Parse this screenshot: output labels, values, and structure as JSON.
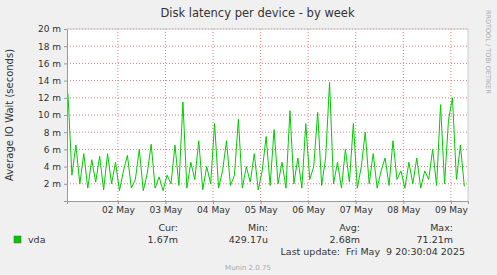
{
  "chart_data": {
    "type": "line",
    "title": "Disk latency per device - by week",
    "y_label": "Average IO Wait (seconds)",
    "x": [
      1.45,
      1.533,
      1.617,
      1.7,
      1.783,
      1.867,
      1.95,
      2.033,
      2.117,
      2.2,
      2.283,
      2.367,
      2.45,
      2.533,
      2.617,
      2.7,
      2.783,
      2.867,
      2.95,
      3.033,
      3.117,
      3.2,
      3.283,
      3.367,
      3.45,
      3.533,
      3.617,
      3.7,
      3.783,
      3.867,
      3.95,
      4.033,
      4.117,
      4.2,
      4.283,
      4.367,
      4.45,
      4.533,
      4.617,
      4.7,
      4.783,
      4.867,
      4.95,
      5.033,
      5.117,
      5.2,
      5.283,
      5.367,
      5.45,
      5.533,
      5.617,
      5.7,
      5.783,
      5.867,
      5.95,
      6.033,
      6.117,
      6.2,
      6.283,
      6.367,
      6.45,
      6.533,
      6.617,
      6.7,
      6.783,
      6.867,
      6.95,
      7.033,
      7.117,
      7.2,
      7.283,
      7.367,
      7.45,
      7.533,
      7.617,
      7.7,
      7.783,
      7.867,
      7.95,
      8.033,
      8.117,
      8.2,
      8.283,
      8.367,
      8.45,
      8.533,
      8.617,
      8.7,
      8.783,
      8.867,
      8.95,
      9.033,
      9.117,
      9.2,
      9.283,
      9.367,
      9.45,
      9.533,
      9.617,
      9.7,
      9.783
    ],
    "series": [
      {
        "name": "vda",
        "color": "#00cc00",
        "values": [
          0.0125,
          0.003,
          0.0065,
          0.002,
          0.0055,
          0.0015,
          0.0048,
          0.0022,
          0.0052,
          0.0013,
          0.0055,
          0.002,
          0.0045,
          0.0012,
          0.0035,
          0.0053,
          0.0015,
          0.0025,
          0.006,
          0.0012,
          0.0032,
          0.0066,
          0.0015,
          0.0028,
          0.0012,
          0.003,
          0.002,
          0.0065,
          0.0018,
          0.0115,
          0.0015,
          0.0045,
          0.0025,
          0.007,
          0.0013,
          0.004,
          0.002,
          0.009,
          0.0015,
          0.0035,
          0.007,
          0.0018,
          0.003,
          0.0095,
          0.0015,
          0.004,
          0.0022,
          0.0055,
          0.0013,
          0.0035,
          0.0075,
          0.0018,
          0.0083,
          0.002,
          0.0045,
          0.0015,
          0.0105,
          0.002,
          0.005,
          0.0015,
          0.009,
          0.0025,
          0.004,
          0.0103,
          0.0018,
          0.005,
          0.0138,
          0.002,
          0.0045,
          0.0015,
          0.006,
          0.0022,
          0.009,
          0.0015,
          0.004,
          0.008,
          0.002,
          0.0055,
          0.0015,
          0.0035,
          0.005,
          0.0018,
          0.007,
          0.0025,
          0.0035,
          0.0015,
          0.0045,
          0.002,
          0.005,
          0.0015,
          0.0035,
          0.0025,
          0.006,
          0.0018,
          0.0112,
          0.002,
          0.0094,
          0.012,
          0.0025,
          0.0065,
          0.0017
        ]
      }
    ],
    "xlim": [
      1.43,
      9.86
    ],
    "ylim": [
      0,
      0.02
    ],
    "xticks": [
      {
        "value": 2.5,
        "label": "02 May"
      },
      {
        "value": 3.5,
        "label": "03 May"
      },
      {
        "value": 4.5,
        "label": "04 May"
      },
      {
        "value": 5.5,
        "label": "05 May"
      },
      {
        "value": 6.5,
        "label": "06 May"
      },
      {
        "value": 7.5,
        "label": "07 May"
      },
      {
        "value": 8.5,
        "label": "08 May"
      },
      {
        "value": 9.5,
        "label": "09 May"
      }
    ],
    "yticks": [
      {
        "value": 0.002,
        "label": "2 m"
      },
      {
        "value": 0.004,
        "label": "4 m"
      },
      {
        "value": 0.006,
        "label": "6 m"
      },
      {
        "value": 0.008,
        "label": "8 m"
      },
      {
        "value": 0.01,
        "label": "10 m"
      },
      {
        "value": 0.012,
        "label": "12 m"
      },
      {
        "value": 0.014,
        "label": "14 m"
      },
      {
        "value": 0.016,
        "label": "16 m"
      },
      {
        "value": 0.018,
        "label": "18 m"
      },
      {
        "value": 0.02,
        "label": "20 m"
      }
    ],
    "grid": true,
    "legend": "bottom",
    "legend_stats": {
      "headers": [
        "Cur:",
        "Min:",
        "Avg:",
        "Max:"
      ],
      "values": [
        {
          "value": 0.00167,
          "label": "1.67m"
        },
        {
          "value": 0.00042917,
          "label": "429.17u"
        },
        {
          "value": 0.00268,
          "label": "2.68m"
        },
        {
          "value": 0.07121,
          "label": "71.21m"
        }
      ]
    },
    "annotations": [
      "Last update:  Fri May  9 20:30:04 2025",
      "Munin 2.0.75",
      "RRDTOOL / TOBI OETIKER"
    ]
  }
}
